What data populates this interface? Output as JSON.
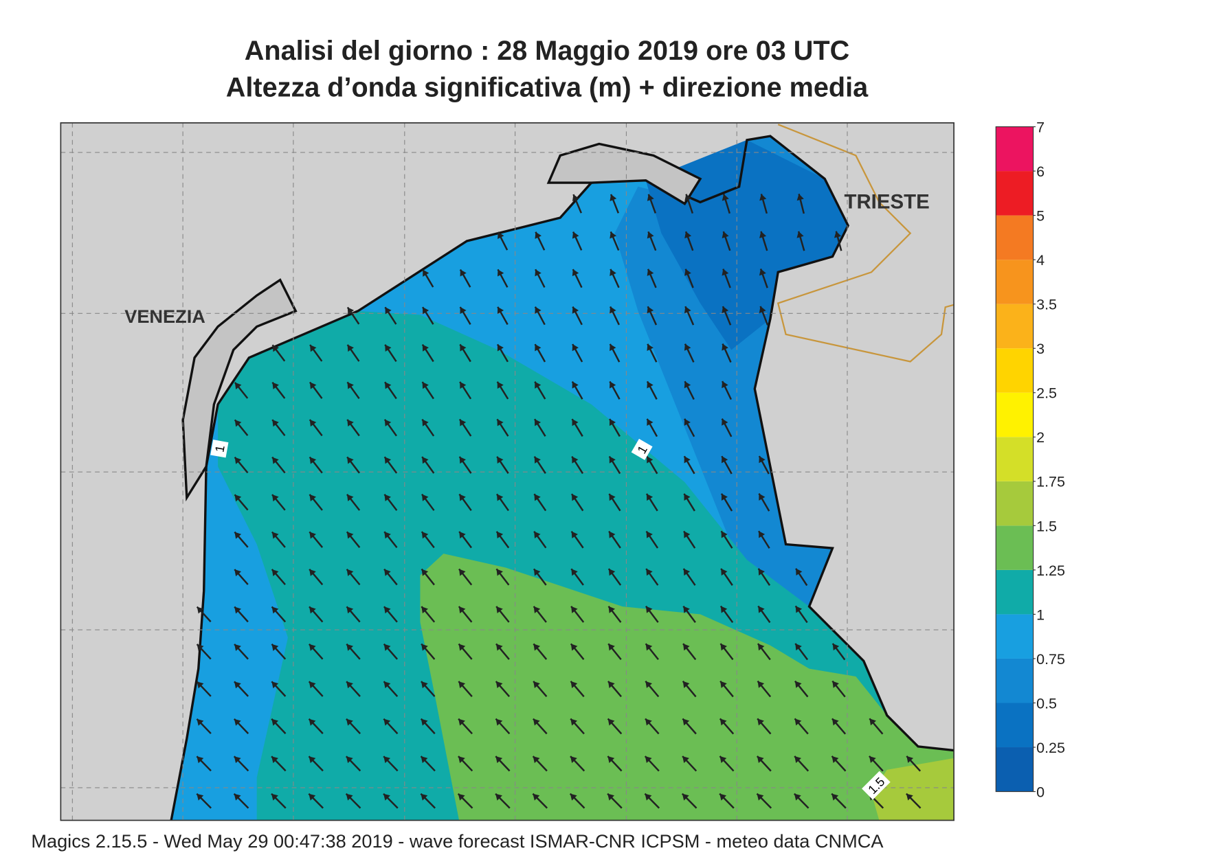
{
  "header": {
    "title": "Analisi del giorno :  28   Maggio  2019   ore 03 UTC",
    "subtitle": "Altezza d’onda significativa (m) + direzione media"
  },
  "map": {
    "place_labels": [
      "VENEZIA",
      "TRIESTE"
    ],
    "contour_labels": [
      "1",
      "1",
      "1.5"
    ]
  },
  "colorbar": {
    "ticks": [
      0,
      0.25,
      0.5,
      0.75,
      1,
      1.25,
      1.5,
      1.75,
      2,
      2.5,
      3,
      3.5,
      4,
      5,
      6,
      7
    ],
    "colors": [
      "#0b5fb0",
      "#0a72c2",
      "#1388d2",
      "#189fe0",
      "#10aba8",
      "#6bbe54",
      "#a6ca3c",
      "#d4df28",
      "#fff200",
      "#ffd400",
      "#fbb21a",
      "#f7941d",
      "#f47a22",
      "#ed1c24",
      "#ec1460"
    ]
  },
  "footer": "Magics 2.15.5 - Wed May 29 00:47:38 2019 - wave forecast  ISMAR-CNR  ICPSM - meteo data   CNMCA"
}
